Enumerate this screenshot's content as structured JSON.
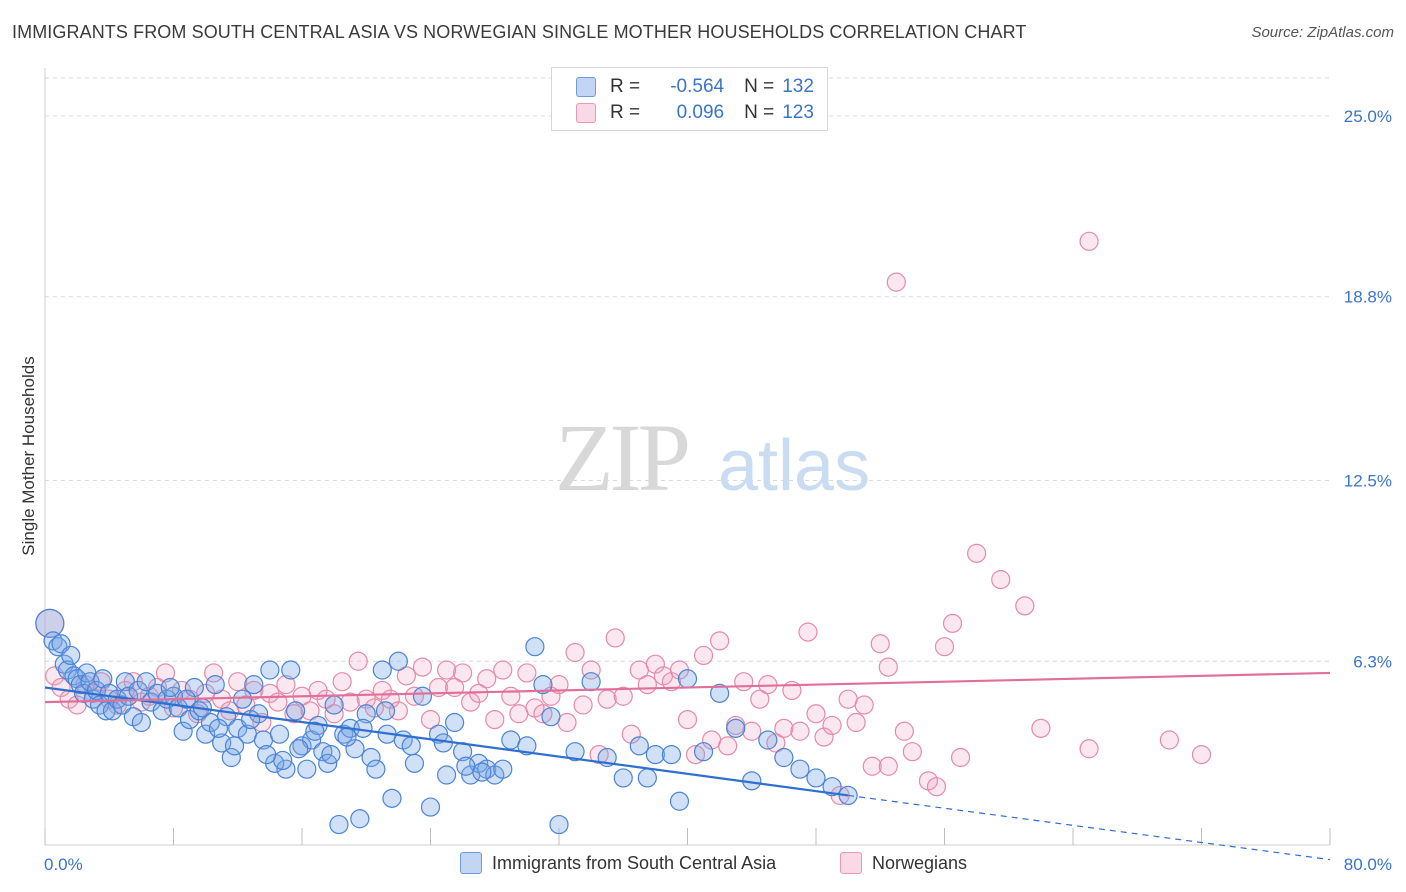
{
  "title": "IMMIGRANTS FROM SOUTH CENTRAL ASIA VS NORWEGIAN SINGLE MOTHER HOUSEHOLDS CORRELATION CHART",
  "source": "Source: ZipAtlas.com",
  "watermark": {
    "zip": "ZIP",
    "atlas": "atlas"
  },
  "legend": {
    "rows": [
      {
        "r_label": "R =",
        "r_value": "-0.564",
        "n_label": "N =",
        "n_value": "132"
      },
      {
        "r_label": "R =",
        "r_value": "0.096",
        "n_label": "N =",
        "n_value": "123"
      }
    ]
  },
  "colors": {
    "blue": "#4a84d8",
    "blue_fill": "rgba(120,165,230,0.35)",
    "blue_line": "#2f6fd0",
    "pink": "#e58aa8",
    "pink_fill": "rgba(240,160,190,0.25)",
    "pink_line": "#e0709a",
    "tick_text": "#3a74c9",
    "grid": "#d9d9d9"
  },
  "chart_data": {
    "type": "scatter",
    "xlabel": "",
    "ylabel": "Single Mother Households",
    "xlim": [
      0,
      80
    ],
    "ylim": [
      0,
      26.3
    ],
    "x_tick_labels": [
      "0.0%",
      "80.0%"
    ],
    "y_ticks": [
      6.3,
      12.5,
      18.8,
      25.0
    ],
    "y_tick_labels": [
      "6.3%",
      "12.5%",
      "18.8%",
      "25.0%"
    ],
    "grid": true,
    "series": [
      {
        "name": "Immigrants from South Central Asia",
        "color": "blue",
        "r": -0.564,
        "n": 132,
        "trend": {
          "x0": 0,
          "y0": 5.4,
          "x1": 50,
          "y1": 1.7,
          "dashed_to_x": 80,
          "dashed_to_y": -0.5
        },
        "points": [
          [
            0.3,
            7.6
          ],
          [
            0.5,
            7.0
          ],
          [
            0.8,
            6.8
          ],
          [
            1.0,
            6.9
          ],
          [
            1.2,
            6.2
          ],
          [
            1.4,
            6.0
          ],
          [
            1.6,
            6.5
          ],
          [
            1.8,
            5.8
          ],
          [
            2.0,
            5.7
          ],
          [
            2.2,
            5.5
          ],
          [
            2.4,
            5.2
          ],
          [
            2.6,
            5.9
          ],
          [
            2.8,
            5.6
          ],
          [
            3.0,
            5.0
          ],
          [
            3.2,
            5.3
          ],
          [
            3.4,
            4.8
          ],
          [
            3.6,
            5.7
          ],
          [
            3.8,
            4.6
          ],
          [
            4.0,
            5.2
          ],
          [
            4.2,
            4.6
          ],
          [
            4.5,
            5.0
          ],
          [
            4.8,
            4.8
          ],
          [
            5.0,
            5.6
          ],
          [
            5.2,
            5.1
          ],
          [
            5.5,
            4.4
          ],
          [
            5.8,
            5.3
          ],
          [
            6.0,
            4.2
          ],
          [
            6.3,
            5.6
          ],
          [
            6.6,
            4.9
          ],
          [
            7.0,
            5.2
          ],
          [
            7.3,
            4.6
          ],
          [
            7.6,
            5.0
          ],
          [
            8.0,
            5.1
          ],
          [
            8.3,
            4.7
          ],
          [
            8.6,
            3.9
          ],
          [
            9.0,
            4.3
          ],
          [
            9.3,
            5.4
          ],
          [
            9.6,
            4.6
          ],
          [
            10.0,
            3.8
          ],
          [
            10.3,
            4.2
          ],
          [
            10.6,
            5.5
          ],
          [
            11.0,
            3.5
          ],
          [
            11.3,
            4.4
          ],
          [
            11.6,
            3.0
          ],
          [
            12.0,
            4.0
          ],
          [
            12.3,
            5.0
          ],
          [
            12.6,
            3.8
          ],
          [
            13.0,
            5.5
          ],
          [
            13.3,
            4.5
          ],
          [
            13.6,
            3.6
          ],
          [
            14.0,
            6.0
          ],
          [
            14.3,
            2.8
          ],
          [
            14.6,
            3.8
          ],
          [
            15.0,
            2.6
          ],
          [
            15.3,
            6.0
          ],
          [
            15.6,
            4.6
          ],
          [
            16.0,
            3.4
          ],
          [
            16.3,
            2.6
          ],
          [
            16.6,
            3.6
          ],
          [
            17.0,
            4.1
          ],
          [
            17.3,
            3.2
          ],
          [
            17.6,
            2.8
          ],
          [
            18.0,
            4.8
          ],
          [
            18.3,
            0.7
          ],
          [
            18.6,
            3.8
          ],
          [
            19.0,
            4.0
          ],
          [
            19.3,
            3.3
          ],
          [
            19.6,
            0.9
          ],
          [
            20.0,
            4.5
          ],
          [
            20.3,
            3.0
          ],
          [
            20.6,
            2.6
          ],
          [
            21.0,
            6.0
          ],
          [
            21.3,
            3.8
          ],
          [
            21.6,
            1.6
          ],
          [
            22.0,
            6.3
          ],
          [
            22.3,
            3.6
          ],
          [
            23.0,
            2.8
          ],
          [
            23.5,
            5.1
          ],
          [
            24.0,
            1.3
          ],
          [
            24.5,
            3.8
          ],
          [
            25.0,
            2.4
          ],
          [
            25.5,
            4.2
          ],
          [
            26.0,
            3.2
          ],
          [
            26.5,
            2.4
          ],
          [
            27.0,
            2.8
          ],
          [
            27.5,
            2.6
          ],
          [
            28.0,
            2.4
          ],
          [
            28.5,
            2.6
          ],
          [
            29.0,
            3.6
          ],
          [
            30.0,
            3.4
          ],
          [
            30.5,
            6.8
          ],
          [
            31.0,
            5.5
          ],
          [
            31.5,
            4.4
          ],
          [
            32.0,
            0.7
          ],
          [
            33.0,
            3.2
          ],
          [
            34.0,
            5.6
          ],
          [
            35.0,
            3.0
          ],
          [
            36.0,
            2.3
          ],
          [
            37.0,
            3.4
          ],
          [
            37.5,
            2.3
          ],
          [
            38.0,
            3.1
          ],
          [
            39.0,
            3.1
          ],
          [
            39.5,
            1.5
          ],
          [
            40.0,
            5.7
          ],
          [
            41.0,
            3.2
          ],
          [
            42.0,
            5.2
          ],
          [
            43.0,
            4.0
          ],
          [
            44.0,
            2.2
          ],
          [
            45.0,
            3.6
          ],
          [
            46.0,
            3.0
          ],
          [
            47.0,
            2.6
          ],
          [
            48.0,
            2.3
          ],
          [
            49.0,
            2.0
          ],
          [
            50.0,
            1.7
          ],
          [
            26.2,
            2.7
          ],
          [
            27.2,
            2.5
          ],
          [
            24.8,
            3.5
          ],
          [
            22.8,
            3.4
          ],
          [
            21.2,
            4.6
          ],
          [
            19.8,
            4.0
          ],
          [
            18.8,
            3.7
          ],
          [
            17.8,
            3.1
          ],
          [
            16.8,
            3.9
          ],
          [
            15.8,
            3.3
          ],
          [
            14.8,
            2.9
          ],
          [
            13.8,
            3.1
          ],
          [
            12.8,
            4.3
          ],
          [
            11.8,
            3.4
          ],
          [
            10.8,
            4.0
          ],
          [
            9.8,
            4.7
          ],
          [
            8.8,
            5.0
          ],
          [
            7.8,
            5.4
          ]
        ]
      },
      {
        "name": "Norwegians",
        "color": "pink",
        "r": 0.096,
        "n": 123,
        "trend": {
          "x0": 0,
          "y0": 4.9,
          "x1": 80,
          "y1": 5.9
        },
        "points": [
          [
            0.3,
            7.6
          ],
          [
            0.6,
            5.8
          ],
          [
            1.0,
            5.4
          ],
          [
            1.5,
            5.0
          ],
          [
            2.0,
            4.8
          ],
          [
            2.5,
            5.5
          ],
          [
            3.0,
            5.2
          ],
          [
            3.5,
            5.6
          ],
          [
            4.0,
            5.0
          ],
          [
            4.5,
            4.8
          ],
          [
            5.0,
            5.3
          ],
          [
            5.5,
            5.6
          ],
          [
            6.0,
            4.9
          ],
          [
            6.5,
            5.1
          ],
          [
            7.0,
            5.4
          ],
          [
            7.5,
            5.9
          ],
          [
            8.0,
            4.7
          ],
          [
            8.5,
            5.3
          ],
          [
            9.0,
            5.0
          ],
          [
            9.5,
            4.5
          ],
          [
            10.0,
            5.2
          ],
          [
            10.5,
            5.9
          ],
          [
            11.0,
            5.0
          ],
          [
            11.5,
            4.6
          ],
          [
            12.0,
            5.6
          ],
          [
            12.5,
            4.8
          ],
          [
            13.0,
            5.3
          ],
          [
            13.5,
            4.2
          ],
          [
            14.0,
            5.2
          ],
          [
            14.5,
            4.9
          ],
          [
            15.0,
            5.5
          ],
          [
            15.5,
            4.5
          ],
          [
            16.0,
            5.1
          ],
          [
            16.5,
            4.6
          ],
          [
            17.0,
            5.3
          ],
          [
            17.5,
            5.0
          ],
          [
            18.0,
            4.5
          ],
          [
            18.5,
            5.6
          ],
          [
            19.0,
            4.9
          ],
          [
            19.5,
            6.3
          ],
          [
            20.0,
            5.0
          ],
          [
            20.5,
            4.7
          ],
          [
            21.0,
            5.3
          ],
          [
            21.5,
            5.0
          ],
          [
            22.0,
            4.6
          ],
          [
            22.5,
            5.8
          ],
          [
            23.0,
            5.1
          ],
          [
            23.5,
            6.1
          ],
          [
            24.0,
            4.3
          ],
          [
            24.5,
            5.4
          ],
          [
            25.0,
            6.0
          ],
          [
            25.5,
            5.4
          ],
          [
            26.0,
            5.9
          ],
          [
            26.5,
            4.9
          ],
          [
            27.0,
            5.2
          ],
          [
            27.5,
            5.7
          ],
          [
            28.0,
            4.3
          ],
          [
            28.5,
            6.0
          ],
          [
            29.0,
            5.1
          ],
          [
            29.5,
            4.5
          ],
          [
            30.0,
            5.9
          ],
          [
            30.5,
            4.7
          ],
          [
            31.0,
            4.5
          ],
          [
            31.5,
            5.1
          ],
          [
            32.0,
            5.5
          ],
          [
            32.5,
            4.2
          ],
          [
            33.0,
            6.6
          ],
          [
            33.5,
            4.8
          ],
          [
            34.0,
            6.0
          ],
          [
            34.5,
            3.1
          ],
          [
            35.0,
            5.0
          ],
          [
            35.5,
            7.1
          ],
          [
            36.0,
            5.1
          ],
          [
            36.5,
            3.8
          ],
          [
            37.0,
            6.0
          ],
          [
            37.5,
            5.5
          ],
          [
            38.0,
            6.2
          ],
          [
            38.5,
            5.8
          ],
          [
            39.0,
            5.6
          ],
          [
            39.5,
            6.0
          ],
          [
            40.0,
            4.3
          ],
          [
            40.5,
            3.1
          ],
          [
            41.0,
            6.5
          ],
          [
            41.5,
            3.6
          ],
          [
            42.0,
            7.0
          ],
          [
            42.5,
            3.4
          ],
          [
            43.0,
            4.1
          ],
          [
            43.5,
            5.6
          ],
          [
            44.0,
            3.9
          ],
          [
            44.5,
            5.0
          ],
          [
            45.0,
            5.5
          ],
          [
            45.5,
            3.5
          ],
          [
            46.0,
            4.0
          ],
          [
            46.5,
            5.3
          ],
          [
            47.0,
            3.9
          ],
          [
            47.5,
            7.3
          ],
          [
            48.0,
            4.5
          ],
          [
            48.5,
            3.7
          ],
          [
            49.0,
            4.1
          ],
          [
            49.5,
            1.7
          ],
          [
            50.0,
            5.0
          ],
          [
            50.5,
            4.2
          ],
          [
            51.0,
            4.8
          ],
          [
            51.5,
            2.7
          ],
          [
            52.0,
            6.9
          ],
          [
            52.5,
            6.1
          ],
          [
            52.5,
            2.7
          ],
          [
            53.0,
            19.3
          ],
          [
            53.5,
            3.9
          ],
          [
            54.0,
            3.2
          ],
          [
            55.0,
            2.2
          ],
          [
            55.5,
            2.0
          ],
          [
            56.0,
            6.8
          ],
          [
            56.5,
            7.6
          ],
          [
            57.0,
            3.0
          ],
          [
            58.0,
            10.0
          ],
          [
            59.5,
            9.1
          ],
          [
            61.0,
            8.2
          ],
          [
            65.0,
            20.7
          ],
          [
            65.0,
            3.3
          ],
          [
            70.0,
            3.6
          ],
          [
            72.0,
            3.1
          ],
          [
            62.0,
            4.0
          ]
        ]
      }
    ]
  },
  "bottom_legend": [
    "Immigrants from South Central Asia",
    "Norwegians"
  ]
}
